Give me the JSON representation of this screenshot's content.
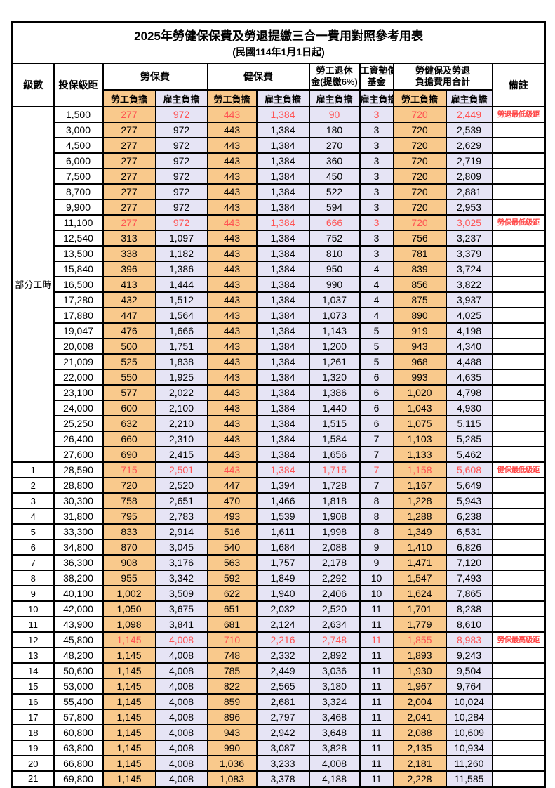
{
  "page": {
    "title": "2025年勞健保保費及勞退提繳三合一費用對照參考用表",
    "subtitle": "(民國114年1月1日起)"
  },
  "colors": {
    "worker_bg": "#F9C98C",
    "employer_bg": "#E6E4F5",
    "highlight_text": "#FF5252",
    "border": "#000000"
  },
  "header": {
    "level": "級數",
    "bracket": "投保級距",
    "labor_fee": "勞保費",
    "health_fee": "健保費",
    "pension_line1": "勞工退休",
    "pension_line2": "金(提繳6%)",
    "wage_fund_line1": "工資墊償",
    "wage_fund_line2": "基金",
    "total_line1": "勞健保及勞退",
    "total_line2": "負擔費用合計",
    "remark": "備註",
    "worker_burden": "勞工負擔",
    "employer_burden": "雇主負擔"
  },
  "table": {
    "part_time_label": "部分工時",
    "value_column_pattern": [
      "w",
      "e",
      "w",
      "e",
      "e",
      "e",
      "w",
      "e"
    ],
    "rows": [
      {
        "level": "部分工時",
        "level_rowspan": 23,
        "bracket": "1,500",
        "values": [
          "277",
          "972",
          "443",
          "1,384",
          "90",
          "3",
          "720",
          "2,449"
        ],
        "remark": "勞退最低級距",
        "highlight": true
      },
      {
        "bracket": "3,000",
        "values": [
          "277",
          "972",
          "443",
          "1,384",
          "180",
          "3",
          "720",
          "2,539"
        ],
        "remark": "",
        "highlight": false
      },
      {
        "bracket": "4,500",
        "values": [
          "277",
          "972",
          "443",
          "1,384",
          "270",
          "3",
          "720",
          "2,629"
        ],
        "remark": "",
        "highlight": false
      },
      {
        "bracket": "6,000",
        "values": [
          "277",
          "972",
          "443",
          "1,384",
          "360",
          "3",
          "720",
          "2,719"
        ],
        "remark": "",
        "highlight": false
      },
      {
        "bracket": "7,500",
        "values": [
          "277",
          "972",
          "443",
          "1,384",
          "450",
          "3",
          "720",
          "2,809"
        ],
        "remark": "",
        "highlight": false
      },
      {
        "bracket": "8,700",
        "values": [
          "277",
          "972",
          "443",
          "1,384",
          "522",
          "3",
          "720",
          "2,881"
        ],
        "remark": "",
        "highlight": false
      },
      {
        "bracket": "9,900",
        "values": [
          "277",
          "972",
          "443",
          "1,384",
          "594",
          "3",
          "720",
          "2,953"
        ],
        "remark": "",
        "highlight": false
      },
      {
        "bracket": "11,100",
        "values": [
          "277",
          "972",
          "443",
          "1,384",
          "666",
          "3",
          "720",
          "3,025"
        ],
        "remark": "勞保最低級距",
        "highlight": true
      },
      {
        "bracket": "12,540",
        "values": [
          "313",
          "1,097",
          "443",
          "1,384",
          "752",
          "3",
          "756",
          "3,237"
        ],
        "remark": "",
        "highlight": false
      },
      {
        "bracket": "13,500",
        "values": [
          "338",
          "1,182",
          "443",
          "1,384",
          "810",
          "3",
          "781",
          "3,379"
        ],
        "remark": "",
        "highlight": false
      },
      {
        "bracket": "15,840",
        "values": [
          "396",
          "1,386",
          "443",
          "1,384",
          "950",
          "4",
          "839",
          "3,724"
        ],
        "remark": "",
        "highlight": false
      },
      {
        "bracket": "16,500",
        "values": [
          "413",
          "1,444",
          "443",
          "1,384",
          "990",
          "4",
          "856",
          "3,822"
        ],
        "remark": "",
        "highlight": false
      },
      {
        "bracket": "17,280",
        "values": [
          "432",
          "1,512",
          "443",
          "1,384",
          "1,037",
          "4",
          "875",
          "3,937"
        ],
        "remark": "",
        "highlight": false
      },
      {
        "bracket": "17,880",
        "values": [
          "447",
          "1,564",
          "443",
          "1,384",
          "1,073",
          "4",
          "890",
          "4,025"
        ],
        "remark": "",
        "highlight": false
      },
      {
        "bracket": "19,047",
        "values": [
          "476",
          "1,666",
          "443",
          "1,384",
          "1,143",
          "5",
          "919",
          "4,198"
        ],
        "remark": "",
        "highlight": false
      },
      {
        "bracket": "20,008",
        "values": [
          "500",
          "1,751",
          "443",
          "1,384",
          "1,200",
          "5",
          "943",
          "4,340"
        ],
        "remark": "",
        "highlight": false
      },
      {
        "bracket": "21,009",
        "values": [
          "525",
          "1,838",
          "443",
          "1,384",
          "1,261",
          "5",
          "968",
          "4,488"
        ],
        "remark": "",
        "highlight": false
      },
      {
        "bracket": "22,000",
        "values": [
          "550",
          "1,925",
          "443",
          "1,384",
          "1,320",
          "6",
          "993",
          "4,635"
        ],
        "remark": "",
        "highlight": false
      },
      {
        "bracket": "23,100",
        "values": [
          "577",
          "2,022",
          "443",
          "1,384",
          "1,386",
          "6",
          "1,020",
          "4,798"
        ],
        "remark": "",
        "highlight": false
      },
      {
        "bracket": "24,000",
        "values": [
          "600",
          "2,100",
          "443",
          "1,384",
          "1,440",
          "6",
          "1,043",
          "4,930"
        ],
        "remark": "",
        "highlight": false
      },
      {
        "bracket": "25,250",
        "values": [
          "632",
          "2,210",
          "443",
          "1,384",
          "1,515",
          "6",
          "1,075",
          "5,115"
        ],
        "remark": "",
        "highlight": false
      },
      {
        "bracket": "26,400",
        "values": [
          "660",
          "2,310",
          "443",
          "1,384",
          "1,584",
          "7",
          "1,103",
          "5,285"
        ],
        "remark": "",
        "highlight": false
      },
      {
        "bracket": "27,600",
        "values": [
          "690",
          "2,415",
          "443",
          "1,384",
          "1,656",
          "7",
          "1,133",
          "5,462"
        ],
        "remark": "",
        "highlight": false
      },
      {
        "level": "1",
        "bracket": "28,590",
        "values": [
          "715",
          "2,501",
          "443",
          "1,384",
          "1,715",
          "7",
          "1,158",
          "5,608"
        ],
        "remark": "健保最低級距",
        "highlight": true
      },
      {
        "level": "2",
        "bracket": "28,800",
        "values": [
          "720",
          "2,520",
          "447",
          "1,394",
          "1,728",
          "7",
          "1,167",
          "5,649"
        ],
        "remark": "",
        "highlight": false
      },
      {
        "level": "3",
        "bracket": "30,300",
        "values": [
          "758",
          "2,651",
          "470",
          "1,466",
          "1,818",
          "8",
          "1,228",
          "5,943"
        ],
        "remark": "",
        "highlight": false
      },
      {
        "level": "4",
        "bracket": "31,800",
        "values": [
          "795",
          "2,783",
          "493",
          "1,539",
          "1,908",
          "8",
          "1,288",
          "6,238"
        ],
        "remark": "",
        "highlight": false
      },
      {
        "level": "5",
        "bracket": "33,300",
        "values": [
          "833",
          "2,914",
          "516",
          "1,611",
          "1,998",
          "8",
          "1,349",
          "6,531"
        ],
        "remark": "",
        "highlight": false
      },
      {
        "level": "6",
        "bracket": "34,800",
        "values": [
          "870",
          "3,045",
          "540",
          "1,684",
          "2,088",
          "9",
          "1,410",
          "6,826"
        ],
        "remark": "",
        "highlight": false
      },
      {
        "level": "7",
        "bracket": "36,300",
        "values": [
          "908",
          "3,176",
          "563",
          "1,757",
          "2,178",
          "9",
          "1,471",
          "7,120"
        ],
        "remark": "",
        "highlight": false
      },
      {
        "level": "8",
        "bracket": "38,200",
        "values": [
          "955",
          "3,342",
          "592",
          "1,849",
          "2,292",
          "10",
          "1,547",
          "7,493"
        ],
        "remark": "",
        "highlight": false
      },
      {
        "level": "9",
        "bracket": "40,100",
        "values": [
          "1,002",
          "3,509",
          "622",
          "1,940",
          "2,406",
          "10",
          "1,624",
          "7,865"
        ],
        "remark": "",
        "highlight": false
      },
      {
        "level": "10",
        "bracket": "42,000",
        "values": [
          "1,050",
          "3,675",
          "651",
          "2,032",
          "2,520",
          "11",
          "1,701",
          "8,238"
        ],
        "remark": "",
        "highlight": false
      },
      {
        "level": "11",
        "bracket": "43,900",
        "values": [
          "1,098",
          "3,841",
          "681",
          "2,124",
          "2,634",
          "11",
          "1,779",
          "8,610"
        ],
        "remark": "",
        "highlight": false
      },
      {
        "level": "12",
        "bracket": "45,800",
        "values": [
          "1,145",
          "4,008",
          "710",
          "2,216",
          "2,748",
          "11",
          "1,855",
          "8,983"
        ],
        "remark": "勞保最高級距",
        "highlight": true
      },
      {
        "level": "13",
        "bracket": "48,200",
        "values": [
          "1,145",
          "4,008",
          "748",
          "2,332",
          "2,892",
          "11",
          "1,893",
          "9,243"
        ],
        "remark": "",
        "highlight": false
      },
      {
        "level": "14",
        "bracket": "50,600",
        "values": [
          "1,145",
          "4,008",
          "785",
          "2,449",
          "3,036",
          "11",
          "1,930",
          "9,504"
        ],
        "remark": "",
        "highlight": false
      },
      {
        "level": "15",
        "bracket": "53,000",
        "values": [
          "1,145",
          "4,008",
          "822",
          "2,565",
          "3,180",
          "11",
          "1,967",
          "9,764"
        ],
        "remark": "",
        "highlight": false
      },
      {
        "level": "16",
        "bracket": "55,400",
        "values": [
          "1,145",
          "4,008",
          "859",
          "2,681",
          "3,324",
          "11",
          "2,004",
          "10,024"
        ],
        "remark": "",
        "highlight": false
      },
      {
        "level": "17",
        "bracket": "57,800",
        "values": [
          "1,145",
          "4,008",
          "896",
          "2,797",
          "3,468",
          "11",
          "2,041",
          "10,284"
        ],
        "remark": "",
        "highlight": false
      },
      {
        "level": "18",
        "bracket": "60,800",
        "values": [
          "1,145",
          "4,008",
          "943",
          "2,942",
          "3,648",
          "11",
          "2,088",
          "10,609"
        ],
        "remark": "",
        "highlight": false
      },
      {
        "level": "19",
        "bracket": "63,800",
        "values": [
          "1,145",
          "4,008",
          "990",
          "3,087",
          "3,828",
          "11",
          "2,135",
          "10,934"
        ],
        "remark": "",
        "highlight": false
      },
      {
        "level": "20",
        "bracket": "66,800",
        "values": [
          "1,145",
          "4,008",
          "1,036",
          "3,233",
          "4,008",
          "11",
          "2,181",
          "11,260"
        ],
        "remark": "",
        "highlight": false
      },
      {
        "level": "21",
        "bracket": "69,800",
        "values": [
          "1,145",
          "4,008",
          "1,083",
          "3,378",
          "4,188",
          "11",
          "2,228",
          "11,585"
        ],
        "remark": "",
        "highlight": false
      }
    ]
  }
}
